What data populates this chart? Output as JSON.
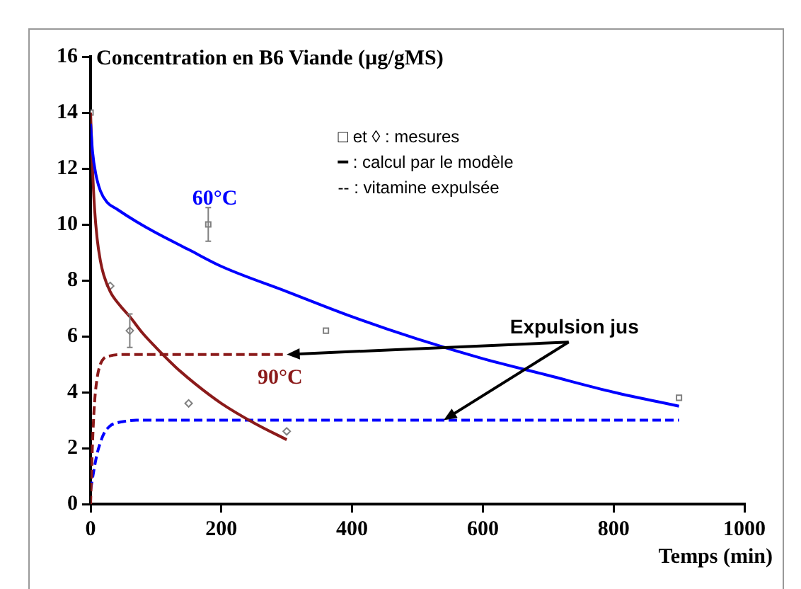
{
  "chart_data": {
    "type": "line",
    "title": "Concentration en B6 Viande (µg/gMS)",
    "xlabel": "Temps (min)",
    "xlim": [
      0,
      1000
    ],
    "xticks": [
      0,
      200,
      400,
      600,
      800,
      1000
    ],
    "ylim": [
      0,
      16
    ],
    "yticks": [
      0,
      2,
      4,
      6,
      8,
      10,
      12,
      14,
      16
    ],
    "grid": false,
    "legend": false,
    "annotations": [
      "60°C",
      "90°C",
      "□ et ◊ : mesures",
      "━ : calcul par le modèle",
      "-- : vitamine expulsée",
      {
        "text": "Expulsion jus",
        "x": 540,
        "y": 3
      }
    ],
    "series": [
      {
        "color": "#0000ff",
        "marker": "none",
        "line_style": "solid",
        "x": [
          0,
          3,
          8,
          15,
          25,
          40,
          70,
          100,
          150,
          200,
          300,
          400,
          500,
          600,
          700,
          800,
          900
        ],
        "values": [
          13.6,
          12.6,
          11.8,
          11.2,
          10.8,
          10.55,
          10.1,
          9.7,
          9.1,
          8.5,
          7.6,
          6.7,
          5.9,
          5.2,
          4.6,
          4.0,
          3.5
        ]
      },
      {
        "color": "#8b1a1a",
        "marker": "none",
        "line_style": "solid",
        "x": [
          0,
          3,
          6,
          10,
          15,
          20,
          30,
          45,
          60,
          80,
          100,
          130,
          160,
          200,
          250,
          300
        ],
        "values": [
          14,
          12,
          10.6,
          9.5,
          8.7,
          8.2,
          7.6,
          7.1,
          6.7,
          6.1,
          5.6,
          4.9,
          4.3,
          3.6,
          2.9,
          2.3
        ]
      },
      {
        "color": "#8b1a1a",
        "marker": "none",
        "line_style": "dashed",
        "x": [
          0,
          3,
          6,
          10,
          15,
          20,
          30,
          50,
          100,
          300
        ],
        "values": [
          0,
          2.2,
          3.6,
          4.5,
          5.0,
          5.2,
          5.3,
          5.35,
          5.35,
          5.35
        ]
      },
      {
        "color": "#0000ff",
        "marker": "none",
        "line_style": "dashed",
        "x": [
          0,
          5,
          10,
          15,
          20,
          30,
          40,
          50,
          70,
          100,
          900
        ],
        "values": [
          0.5,
          1.2,
          1.8,
          2.2,
          2.5,
          2.8,
          2.9,
          2.95,
          3,
          3,
          3
        ]
      },
      {
        "type": "scatter",
        "color": "#808080",
        "marker": "square",
        "x": [
          0,
          180,
          360,
          900
        ],
        "values": [
          14,
          10,
          6.2,
          3.8
        ],
        "errors": [
          null,
          0.6,
          null,
          null
        ]
      },
      {
        "type": "scatter",
        "color": "#808080",
        "marker": "diamond",
        "x": [
          30,
          60,
          150,
          300
        ],
        "values": [
          7.8,
          6.2,
          3.6,
          2.6
        ],
        "errors": [
          null,
          0.6,
          null,
          null
        ]
      }
    ]
  }
}
